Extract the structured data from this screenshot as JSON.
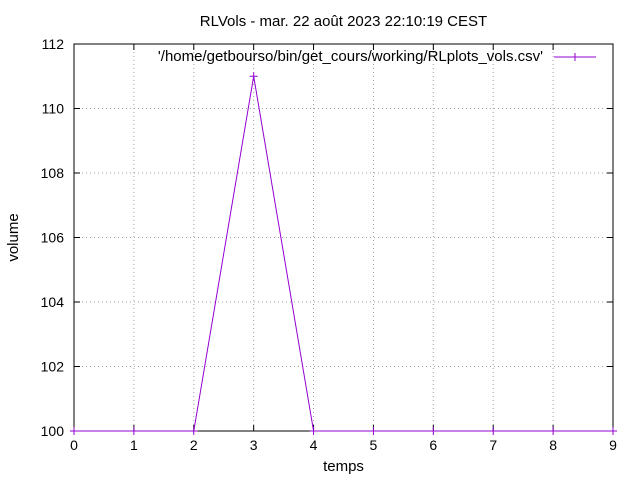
{
  "chart_data": {
    "type": "line",
    "title": "RLVols - mar. 22 août 2023 22:10:19 CEST",
    "xlabel": "temps",
    "ylabel": "volume",
    "xlim": [
      0,
      9
    ],
    "ylim": [
      100,
      112
    ],
    "x_ticks": [
      "0",
      "1",
      "2",
      "3",
      "4",
      "5",
      "6",
      "7",
      "8",
      "9"
    ],
    "y_ticks": [
      "100",
      "102",
      "104",
      "106",
      "108",
      "110",
      "112"
    ],
    "grid": true,
    "legend_position": "top-right",
    "series": [
      {
        "name": "'/home/getbourso/bin/get_cours/working/RLplots_vols.csv'",
        "color": "#9400d3",
        "marker": "plus",
        "x": [
          0,
          1,
          2,
          3,
          4,
          5,
          6,
          7,
          8,
          9
        ],
        "y": [
          100,
          100,
          100,
          111,
          100,
          100,
          100,
          100,
          100,
          100
        ]
      }
    ]
  }
}
